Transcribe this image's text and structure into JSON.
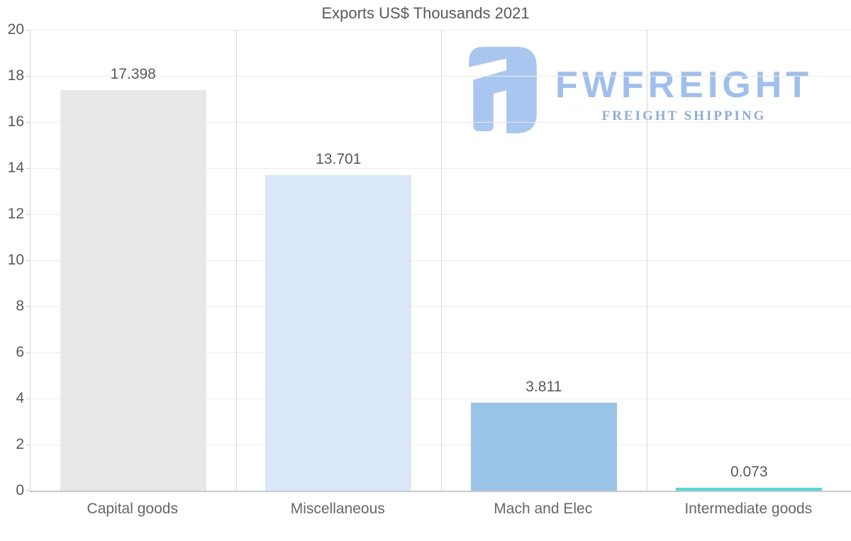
{
  "title": "Exports US$ Thousands 2021",
  "watermark": {
    "brand": "FWFREIGHT",
    "tagline": "FREIGHT SHIPPING",
    "mark_color": "#a9c6f1",
    "brand_color": "#9fbfee",
    "tagline_color": "#8badE0"
  },
  "colors": {
    "title_text": "#595959",
    "axis_line": "#c9c9c9",
    "grid_horizontal": "#ebebeb",
    "grid_vertical": "#d9d9d9",
    "tick_text": "#595959",
    "category_text": "#666666"
  },
  "chart_data": {
    "type": "bar",
    "title": "Exports US$ Thousands 2021",
    "categories": [
      "Capital goods",
      "Miscellaneous",
      "Mach and Elec",
      "Intermediate goods"
    ],
    "values": [
      17.398,
      13.701,
      3.811,
      0.073
    ],
    "value_labels": [
      "17.398",
      "13.701",
      "3.811",
      "0.073"
    ],
    "bar_colors": [
      "#e8e8e8",
      "#d9e7f8",
      "#9ac4e7",
      "#4ddbd4"
    ],
    "xlabel": "",
    "ylabel": "",
    "ylim": [
      0,
      20
    ],
    "yticks": [
      0,
      2,
      4,
      6,
      8,
      10,
      12,
      14,
      16,
      18,
      20
    ],
    "grid": "horizontal and vertical gridlines on",
    "legend": "none"
  }
}
